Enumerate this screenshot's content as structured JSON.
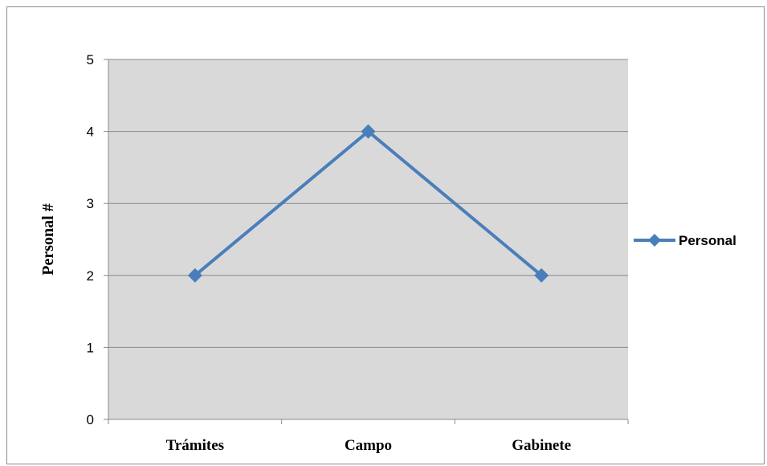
{
  "chart_data": {
    "type": "line",
    "title": "",
    "xlabel": "",
    "ylabel": "Personal #",
    "categories": [
      "Trámites",
      "Campo",
      "Gabinete"
    ],
    "ylim": [
      0,
      5
    ],
    "yticks": [
      0,
      1,
      2,
      3,
      4,
      5
    ],
    "grid": true,
    "legend_position": "right",
    "series": [
      {
        "name": "Personal",
        "values": [
          2,
          4,
          2
        ],
        "color": "#4a7ebb",
        "marker": "diamond"
      }
    ],
    "colors": {
      "plot_background": "#d9d9d9",
      "gridline": "#8a8a8a",
      "axis": "#8a8a8a"
    }
  }
}
